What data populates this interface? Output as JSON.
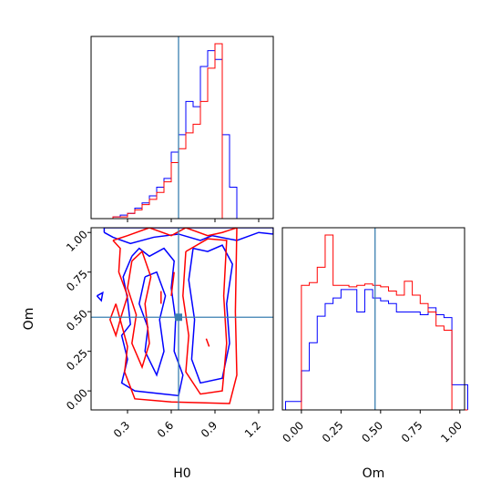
{
  "chart_data": {
    "type": "corner",
    "parameters": [
      "H0",
      "Om"
    ],
    "truth": {
      "H0": 0.65,
      "Om": 0.465
    },
    "colors": {
      "series_a": "#0000ff",
      "series_b": "#ff0000",
      "truth": "#3a7fb0"
    },
    "axes": {
      "H0": {
        "label": "H0",
        "range": [
          0.05,
          1.3
        ],
        "ticks": [
          0.3,
          0.6,
          0.9,
          1.2
        ],
        "tick_labels": [
          "0.3",
          "0.6",
          "0.9",
          "1.2"
        ]
      },
      "Om": {
        "label": "Om",
        "range": [
          -0.12,
          1.03
        ],
        "ticks": [
          0.0,
          0.25,
          0.5,
          0.75,
          1.0
        ],
        "tick_labels": [
          "0.00",
          "0.25",
          "0.50",
          "0.75",
          "1.00"
        ]
      }
    },
    "hist_H0": {
      "bin_edges": [
        0.2,
        0.25,
        0.3,
        0.35,
        0.4,
        0.45,
        0.5,
        0.55,
        0.6,
        0.65,
        0.7,
        0.75,
        0.8,
        0.85,
        0.9,
        0.95,
        1.0,
        1.05
      ],
      "series": [
        {
          "color": "blue",
          "counts": [
            1,
            2,
            3,
            6,
            9,
            13,
            18,
            23,
            38,
            48,
            67,
            64,
            87,
            96,
            91,
            48,
            18
          ]
        },
        {
          "color": "red",
          "counts": [
            1,
            1,
            3,
            5,
            8,
            11,
            15,
            21,
            32,
            40,
            49,
            54,
            67,
            86,
            100,
            0,
            0
          ]
        }
      ]
    },
    "hist_Om": {
      "bin_edges": [
        -0.1,
        -0.05,
        0.0,
        0.05,
        0.1,
        0.15,
        0.2,
        0.25,
        0.3,
        0.35,
        0.4,
        0.45,
        0.5,
        0.55,
        0.6,
        0.65,
        0.7,
        0.75,
        0.8,
        0.85,
        0.9,
        0.95,
        1.0,
        1.05
      ],
      "series": [
        {
          "color": "blue",
          "counts": [
            6,
            6,
            28,
            48,
            67,
            76,
            80,
            86,
            86,
            70,
            86,
            80,
            78,
            76,
            70,
            70,
            70,
            68,
            73,
            68,
            66,
            18,
            18
          ]
        },
        {
          "color": "red",
          "counts": [
            0,
            0,
            89,
            91,
            102,
            125,
            89,
            89,
            88,
            89,
            90,
            89,
            88,
            85,
            82,
            92,
            82,
            76,
            70,
            60,
            57,
            0,
            0
          ]
        }
      ]
    },
    "contours": {
      "blue": [
        [
          [
            0.14,
            1.0
          ],
          [
            0.2,
            0.97
          ],
          [
            0.32,
            0.93
          ],
          [
            0.48,
            0.97
          ],
          [
            0.65,
            0.99
          ],
          [
            0.8,
            0.95
          ],
          [
            0.88,
            0.98
          ],
          [
            1.05,
            0.95
          ],
          [
            1.2,
            1.0
          ],
          [
            1.3,
            0.99
          ],
          [
            1.3,
            1.03
          ],
          [
            0.14,
            1.03
          ],
          [
            0.14,
            1.0
          ]
        ],
        [
          [
            0.33,
            0.85
          ],
          [
            0.27,
            0.72
          ],
          [
            0.3,
            0.58
          ],
          [
            0.32,
            0.42
          ],
          [
            0.26,
            0.35
          ],
          [
            0.3,
            0.2
          ],
          [
            0.26,
            0.05
          ],
          [
            0.35,
            0.0
          ],
          [
            0.55,
            -0.02
          ],
          [
            0.65,
            -0.03
          ],
          [
            0.68,
            0.1
          ],
          [
            0.62,
            0.25
          ],
          [
            0.63,
            0.45
          ],
          [
            0.6,
            0.65
          ],
          [
            0.62,
            0.82
          ],
          [
            0.55,
            0.9
          ],
          [
            0.45,
            0.85
          ],
          [
            0.38,
            0.9
          ],
          [
            0.33,
            0.85
          ]
        ],
        [
          [
            0.42,
            0.72
          ],
          [
            0.38,
            0.55
          ],
          [
            0.44,
            0.4
          ],
          [
            0.42,
            0.25
          ],
          [
            0.5,
            0.1
          ],
          [
            0.55,
            0.25
          ],
          [
            0.52,
            0.45
          ],
          [
            0.56,
            0.6
          ],
          [
            0.5,
            0.75
          ],
          [
            0.42,
            0.72
          ]
        ],
        [
          [
            0.75,
            0.9
          ],
          [
            0.72,
            0.7
          ],
          [
            0.76,
            0.45
          ],
          [
            0.74,
            0.2
          ],
          [
            0.8,
            0.05
          ],
          [
            0.95,
            0.08
          ],
          [
            1.0,
            0.3
          ],
          [
            0.98,
            0.55
          ],
          [
            1.02,
            0.8
          ],
          [
            0.95,
            0.92
          ],
          [
            0.85,
            0.88
          ],
          [
            0.75,
            0.9
          ]
        ],
        [
          [
            0.09,
            0.6
          ],
          [
            0.12,
            0.57
          ],
          [
            0.13,
            0.62
          ],
          [
            0.09,
            0.6
          ]
        ]
      ],
      "red": [
        [
          [
            0.2,
            0.95
          ],
          [
            0.25,
            0.9
          ],
          [
            0.24,
            0.75
          ],
          [
            0.3,
            0.6
          ],
          [
            0.25,
            0.45
          ],
          [
            0.3,
            0.28
          ],
          [
            0.28,
            0.12
          ],
          [
            0.35,
            -0.05
          ],
          [
            0.6,
            -0.07
          ],
          [
            1.0,
            -0.08
          ],
          [
            1.05,
            0.1
          ],
          [
            1.04,
            0.5
          ],
          [
            1.05,
            1.03
          ],
          [
            0.95,
            1.0
          ],
          [
            0.85,
            0.98
          ],
          [
            0.7,
            1.03
          ],
          [
            0.6,
            0.98
          ],
          [
            0.45,
            1.03
          ],
          [
            0.3,
            0.98
          ],
          [
            0.2,
            0.95
          ]
        ],
        [
          [
            0.33,
            0.82
          ],
          [
            0.3,
            0.65
          ],
          [
            0.36,
            0.48
          ],
          [
            0.33,
            0.3
          ],
          [
            0.4,
            0.15
          ],
          [
            0.45,
            0.3
          ],
          [
            0.42,
            0.55
          ],
          [
            0.46,
            0.72
          ],
          [
            0.4,
            0.88
          ],
          [
            0.33,
            0.82
          ]
        ],
        [
          [
            0.7,
            0.88
          ],
          [
            0.68,
            0.6
          ],
          [
            0.72,
            0.35
          ],
          [
            0.7,
            0.12
          ],
          [
            0.8,
            -0.02
          ],
          [
            0.95,
            0.0
          ],
          [
            0.98,
            0.3
          ],
          [
            0.96,
            0.6
          ],
          [
            0.98,
            0.95
          ],
          [
            0.85,
            0.96
          ],
          [
            0.7,
            0.88
          ]
        ],
        [
          [
            0.22,
            0.55
          ],
          [
            0.18,
            0.45
          ],
          [
            0.22,
            0.35
          ],
          [
            0.25,
            0.45
          ],
          [
            0.22,
            0.55
          ]
        ],
        [
          [
            0.53,
            0.63
          ],
          [
            0.53,
            0.55
          ]
        ],
        [
          [
            0.84,
            0.33
          ],
          [
            0.86,
            0.28
          ]
        ],
        [
          [
            0.62,
            0.75
          ],
          [
            0.6,
            0.6
          ]
        ]
      ]
    }
  }
}
